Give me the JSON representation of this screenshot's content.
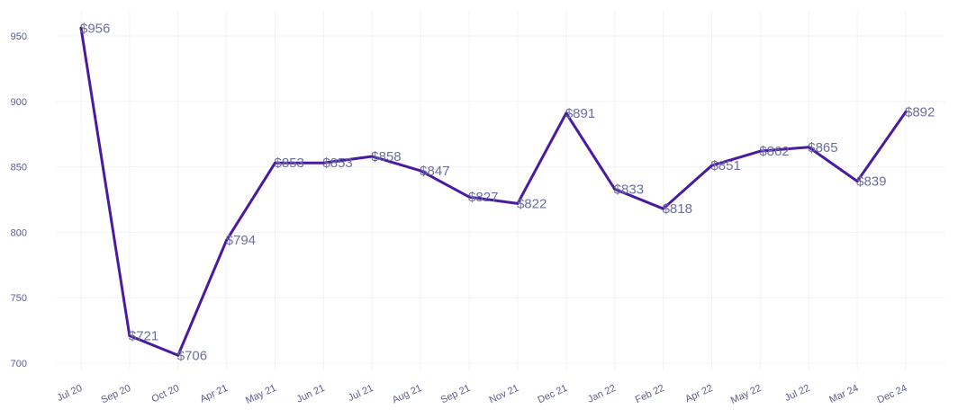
{
  "chart_data": {
    "type": "line",
    "title": "",
    "xlabel": "",
    "ylabel": "",
    "ylim": [
      695,
      968
    ],
    "yticks": [
      700,
      750,
      800,
      850,
      900,
      950
    ],
    "grid": true,
    "categories": [
      "Jul 20",
      "Sep 20",
      "Oct 20",
      "Apr 21",
      "May 21",
      "Jun 21",
      "Jul 21",
      "Aug 21",
      "Sep 21",
      "Nov 21",
      "Dec 21",
      "Jan 22",
      "Feb 22",
      "Apr 22",
      "May 22",
      "Jul 22",
      "Mar 24",
      "Dec 24"
    ],
    "series": [
      {
        "name": "Price",
        "color": "#4a1aa0",
        "values": [
          956,
          721,
          706,
          794,
          853,
          853,
          858,
          847,
          827,
          822,
          891,
          833,
          818,
          851,
          862,
          865,
          839,
          892
        ],
        "labels": [
          "$956",
          "$721",
          "$706",
          "$794",
          "$853",
          "$853",
          "$858",
          "$847",
          "$827",
          "$822",
          "$891",
          "$833",
          "$818",
          "$851",
          "$862",
          "$865",
          "$839",
          "$892"
        ]
      }
    ]
  }
}
